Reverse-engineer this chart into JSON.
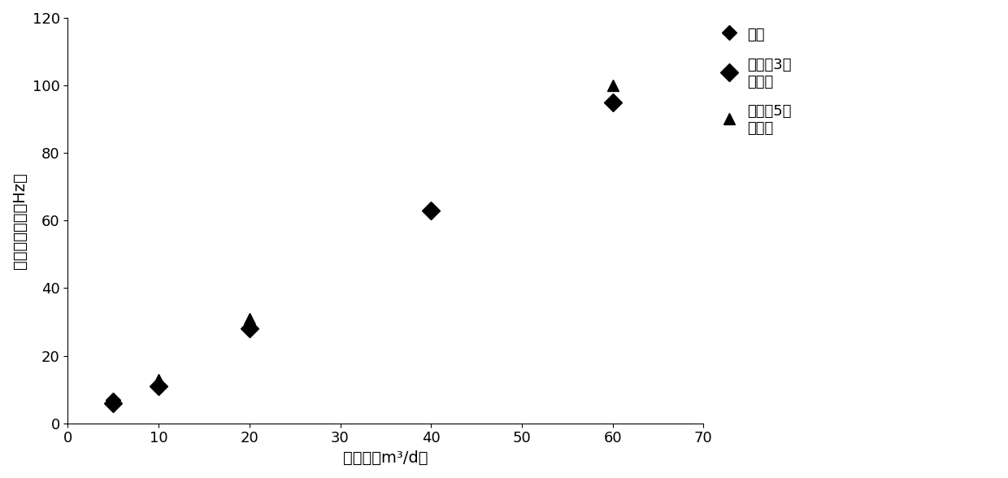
{
  "series": [
    {
      "label": "清水",
      "marker": "D",
      "x": [
        5
      ],
      "y": [
        7
      ],
      "markersize": 9,
      "color": "#000000"
    },
    {
      "label": "气流量3方\n加清水",
      "marker": "D",
      "x": [
        5,
        10,
        20,
        40,
        60
      ],
      "y": [
        6,
        11,
        28,
        63,
        95
      ],
      "markersize": 11,
      "color": "#000000"
    },
    {
      "label": "气流量5方\n加清水",
      "marker": "^",
      "x": [
        10,
        20,
        60
      ],
      "y": [
        13,
        31,
        100
      ],
      "markersize": 10,
      "color": "#000000"
    }
  ],
  "xlabel": "水流量（m³/d）",
  "ylabel": "涡轮响应频率（Hz）",
  "xlim": [
    0,
    70
  ],
  "ylim": [
    0,
    120
  ],
  "xticks": [
    0,
    10,
    20,
    30,
    40,
    50,
    60,
    70
  ],
  "yticks": [
    0,
    20,
    40,
    60,
    80,
    100,
    120
  ],
  "background_color": "#ffffff",
  "tick_font_size": 13,
  "label_font_size": 14,
  "legend_font_size": 13
}
